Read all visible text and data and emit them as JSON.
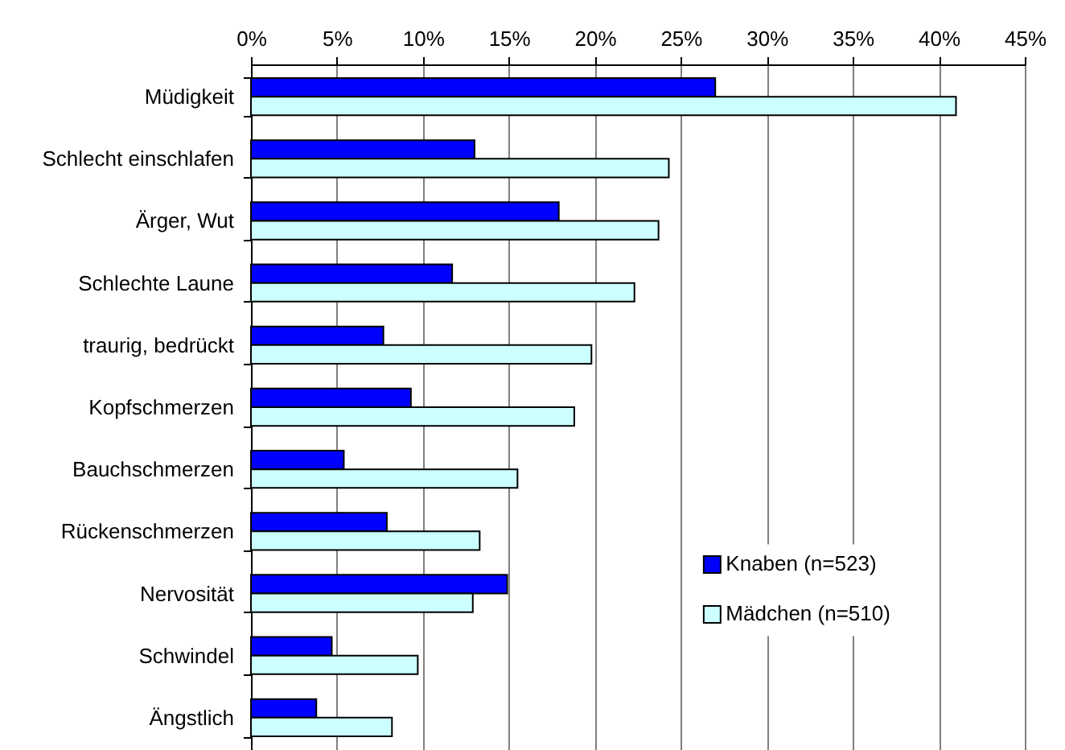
{
  "chart_data": {
    "type": "bar",
    "orientation": "horizontal",
    "categories": [
      "Müdigkeit",
      "Schlecht einschlafen",
      "Ärger, Wut",
      "Schlechte Laune",
      "traurig, bedrückt",
      "Kopfschmerzen",
      "Bauchschmerzen",
      "Rückenschmerzen",
      "Nervosität",
      "Schwindel",
      "Ängstlich"
    ],
    "series": [
      {
        "name": "Knaben (n=523)",
        "color": "#0000ff",
        "values": [
          27.0,
          13.0,
          17.9,
          11.7,
          7.7,
          9.3,
          5.4,
          7.9,
          14.9,
          4.7,
          3.8
        ]
      },
      {
        "name": "Mädchen (n=510)",
        "color": "#ccffff",
        "values": [
          41.0,
          24.3,
          23.7,
          22.3,
          19.8,
          18.8,
          15.5,
          13.3,
          12.9,
          9.7,
          8.2
        ]
      }
    ],
    "xlim": [
      0,
      45
    ],
    "xticks": [
      {
        "value": 0,
        "label": "0%"
      },
      {
        "value": 5,
        "label": "5%"
      },
      {
        "value": 10,
        "label": "10%"
      },
      {
        "value": 15,
        "label": "15%"
      },
      {
        "value": 20,
        "label": "20%"
      },
      {
        "value": 25,
        "label": "25%"
      },
      {
        "value": 30,
        "label": "30%"
      },
      {
        "value": 35,
        "label": "35%"
      },
      {
        "value": 40,
        "label": "40%"
      },
      {
        "value": 45,
        "label": "45%"
      }
    ],
    "grid": "x",
    "legend": "bottom right"
  }
}
